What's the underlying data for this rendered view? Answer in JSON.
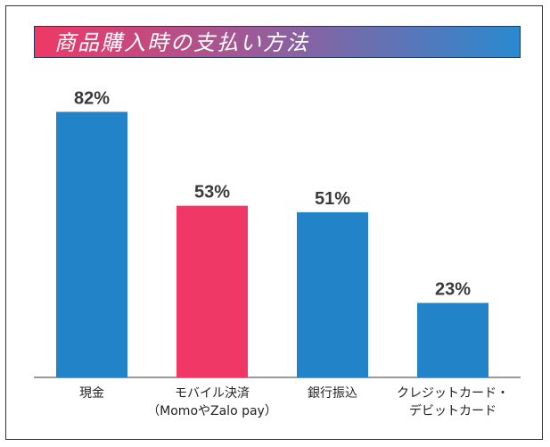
{
  "chart_data": {
    "type": "bar",
    "title": "商品購入時の支払い方法",
    "categories": [
      [
        "現金"
      ],
      [
        "モバイル決済",
        "（MomoやZalo pay）"
      ],
      [
        "銀行振込"
      ],
      [
        "クレジットカード・",
        "デビットカード"
      ]
    ],
    "values": [
      82,
      53,
      51,
      23
    ],
    "value_labels": [
      "82%",
      "53%",
      "51%",
      "23%"
    ],
    "colors": [
      "#2283c9",
      "#ef3865",
      "#2283c9",
      "#2283c9"
    ],
    "ylim": [
      0,
      100
    ],
    "grid": false,
    "legend": "none"
  }
}
